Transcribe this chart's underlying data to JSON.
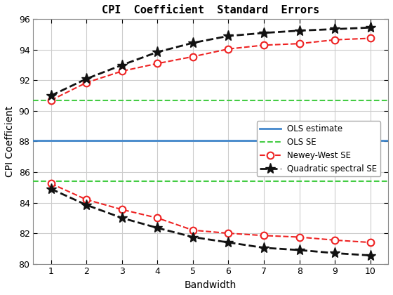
{
  "title": "CPI  Coefficient  Standard  Errors",
  "xlabel": "Bandwidth",
  "ylabel": "CPI Coefficient",
  "xlim": [
    1,
    10
  ],
  "ylim": [
    80,
    96
  ],
  "ols_estimate": 88.05,
  "ols_se_upper": 90.7,
  "ols_se_lower": 85.4,
  "bandwidth": [
    1,
    2,
    3,
    4,
    5,
    6,
    7,
    8,
    9,
    10
  ],
  "nw_upper": [
    90.7,
    91.85,
    92.6,
    93.1,
    93.55,
    94.05,
    94.3,
    94.4,
    94.65,
    94.75
  ],
  "nw_lower": [
    85.25,
    84.2,
    83.55,
    83.0,
    82.2,
    82.0,
    81.85,
    81.75,
    81.55,
    81.4
  ],
  "qs_upper": [
    91.0,
    92.1,
    93.0,
    93.85,
    94.45,
    94.9,
    95.1,
    95.25,
    95.35,
    95.45
  ],
  "qs_lower": [
    84.9,
    83.85,
    83.0,
    82.35,
    81.75,
    81.4,
    81.05,
    80.9,
    80.7,
    80.55
  ],
  "ols_color": "#4488CC",
  "ols_se_color": "#44CC44",
  "nw_color": "#EE2222",
  "qs_color": "#111111",
  "bg_color": "#FFFFFF",
  "grid_color": "#CCCCCC"
}
